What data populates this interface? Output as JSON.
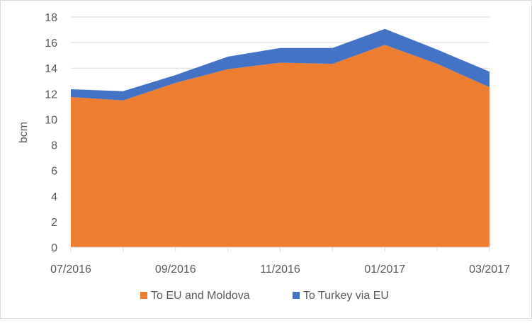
{
  "chart_data": {
    "type": "area",
    "stacked": true,
    "title": "",
    "xlabel": "",
    "ylabel": "bcm",
    "ylim": [
      0,
      18
    ],
    "yticks": [
      0,
      2,
      4,
      6,
      8,
      10,
      12,
      14,
      16,
      18
    ],
    "grid": true,
    "legend_position": "bottom",
    "categories": [
      "07/2016",
      "08/2016",
      "09/2016",
      "10/2016",
      "11/2016",
      "12/2016",
      "01/2017",
      "02/2017",
      "03/2017"
    ],
    "xtick_labels": [
      "07/2016",
      "09/2016",
      "11/2016",
      "01/2017",
      "03/2017"
    ],
    "series": [
      {
        "name": "To EU and Moldova",
        "color": "#ED7D31",
        "values": [
          11.74,
          11.48,
          12.85,
          13.92,
          14.43,
          14.34,
          15.82,
          14.34,
          12.51
        ]
      },
      {
        "name": "To Turkey via EU",
        "color": "#4472C4",
        "values": [
          0.61,
          0.72,
          0.61,
          0.98,
          1.15,
          1.24,
          1.25,
          1.11,
          1.22
        ]
      }
    ]
  }
}
